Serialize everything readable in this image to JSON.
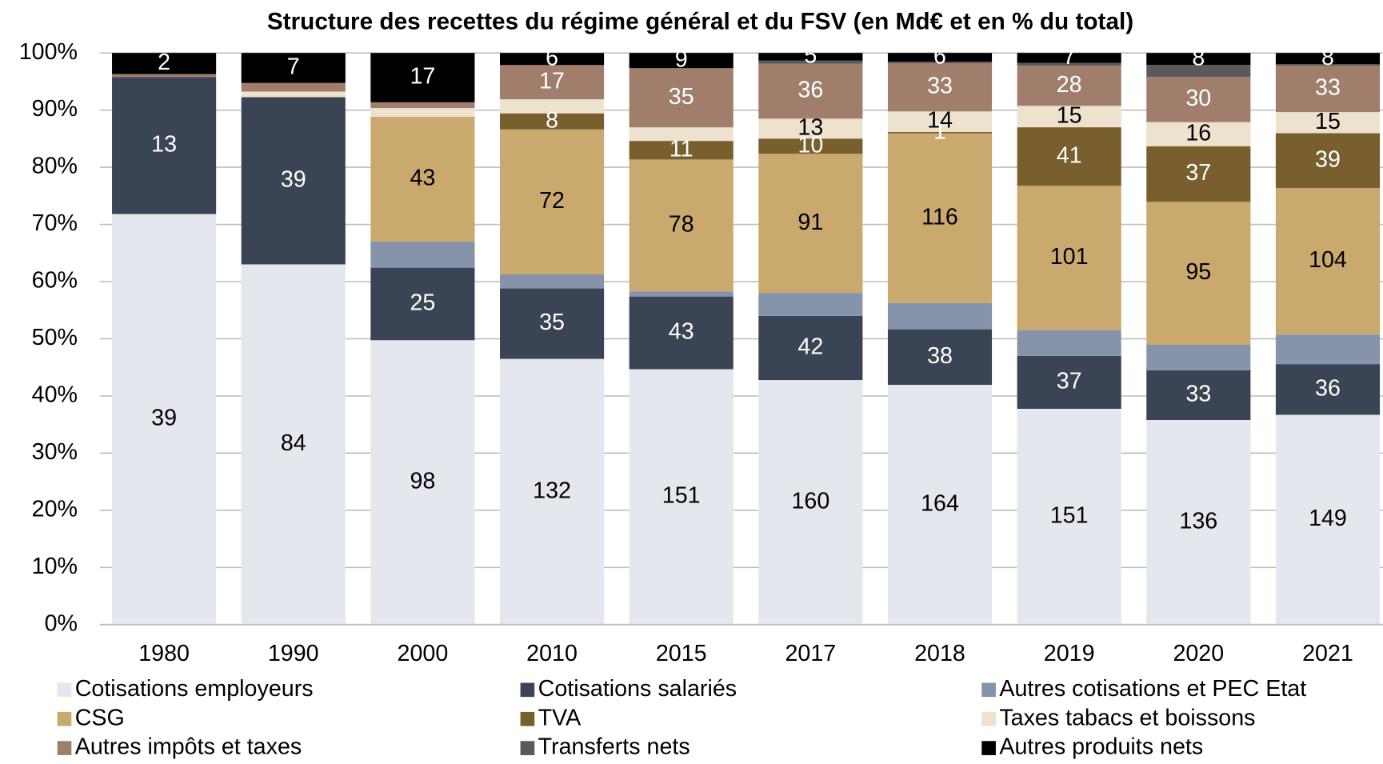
{
  "chart_data": {
    "type": "bar",
    "stacked": "percent",
    "title": "Structure des recettes du régime général et du FSV (en Md€ et en % du total)",
    "categories": [
      "1980",
      "1990",
      "2000",
      "2010",
      "2015",
      "2017",
      "2018",
      "2019",
      "2020",
      "2021"
    ],
    "ylim": [
      0,
      100
    ],
    "yticks": [
      {
        "value": 0,
        "label": "0%"
      },
      {
        "value": 10,
        "label": "10%"
      },
      {
        "value": 20,
        "label": "20%"
      },
      {
        "value": 30,
        "label": "30%"
      },
      {
        "value": 40,
        "label": "40%"
      },
      {
        "value": 50,
        "label": "50%"
      },
      {
        "value": 60,
        "label": "60%"
      },
      {
        "value": 70,
        "label": "70%"
      },
      {
        "value": 80,
        "label": "80%"
      },
      {
        "value": 90,
        "label": "90%"
      },
      {
        "value": 100,
        "label": "100%"
      }
    ],
    "grid": true,
    "series": [
      {
        "name": "Cotisations employeurs",
        "color": "#e4e7ee",
        "values": [
          39,
          84,
          98,
          132,
          151,
          160,
          164,
          151,
          136,
          149
        ],
        "value_labels": [
          "39",
          "84",
          "98",
          "132",
          "151",
          "160",
          "164",
          "151",
          "136",
          "149"
        ]
      },
      {
        "name": "Cotisations salariés",
        "color": "#3b4455",
        "values": [
          13,
          39,
          25,
          35,
          43,
          42,
          38,
          37,
          33,
          36
        ],
        "value_labels": [
          "13",
          "39",
          "25",
          "35",
          "43",
          "42",
          "38",
          "37",
          "33",
          "36"
        ]
      },
      {
        "name": "Autres cotisations et PEC Etat",
        "color": "#8593ab",
        "values": [
          0,
          0,
          9,
          7,
          3,
          15,
          18,
          18,
          17,
          21
        ],
        "value_labels": [
          null,
          null,
          null,
          null,
          null,
          null,
          null,
          null,
          null,
          null
        ]
      },
      {
        "name": "CSG",
        "color": "#c9a96e",
        "values": [
          0,
          0,
          43,
          72,
          78,
          91,
          116,
          101,
          95,
          104
        ],
        "value_labels": [
          null,
          null,
          "43",
          "72",
          "78",
          "91",
          "116",
          "101",
          "95",
          "104"
        ]
      },
      {
        "name": "TVA",
        "color": "#7a5f2e",
        "values": [
          0,
          0,
          0,
          8,
          11,
          10,
          1,
          41,
          37,
          39
        ],
        "value_labels": [
          null,
          null,
          null,
          "8",
          "11",
          "10",
          "1",
          "41",
          "37",
          "39"
        ]
      },
      {
        "name": "Taxes tabacs et boissons",
        "color": "#ede2cd",
        "values": [
          0,
          1.3,
          3,
          7,
          8,
          13,
          14,
          15,
          16,
          15
        ],
        "value_labels": [
          null,
          null,
          null,
          null,
          null,
          "13",
          "14",
          "15",
          "16",
          "15"
        ]
      },
      {
        "name": "Autres impôts et taxes",
        "color": "#a07e6b",
        "values": [
          0.3,
          2,
          2,
          17,
          35,
          36,
          33,
          28,
          30,
          33
        ],
        "value_labels": [
          null,
          null,
          null,
          "17",
          "35",
          "36",
          "33",
          "28",
          "30",
          "33"
        ]
      },
      {
        "name": "Transferts nets",
        "color": "#5a5a5a",
        "values": [
          0,
          0,
          0,
          0,
          0,
          2,
          1,
          2,
          8,
          1
        ],
        "value_labels": [
          null,
          null,
          null,
          null,
          null,
          null,
          null,
          null,
          null,
          null
        ]
      },
      {
        "name": "Autres produits nets",
        "color": "#000000",
        "values": [
          2,
          7,
          17,
          6,
          9,
          5,
          6,
          7,
          8,
          8
        ],
        "value_labels": [
          "2",
          "7",
          "17",
          "6",
          "9",
          "5",
          "6",
          "7",
          "8",
          "8"
        ]
      }
    ]
  }
}
